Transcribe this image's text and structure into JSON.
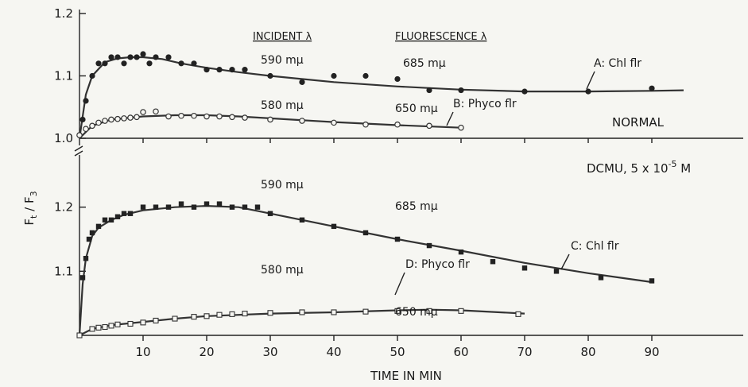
{
  "chart_data": {
    "type": "scatter",
    "xlabel": "TIME IN MIN",
    "ylabel_main": "F",
    "ylabel_sub1": "t",
    "ylabel_slash": " / F",
    "ylabel_sub2": "3",
    "x_ticks": [
      "10",
      "20",
      "30",
      "40",
      "50",
      "60",
      "70",
      "80",
      "90"
    ],
    "x_tick_values": [
      10,
      20,
      30,
      40,
      50,
      60,
      70,
      80,
      90
    ],
    "xlim": [
      0,
      95
    ],
    "top_panel": {
      "ylim": [
        1.0,
        1.2
      ],
      "y_ticks": [
        "1.0",
        "1.1",
        "1.2"
      ],
      "y_tick_values": [
        1.0,
        1.1,
        1.2
      ],
      "condition": "NORMAL"
    },
    "bottom_panel": {
      "ylim": [
        1.0,
        1.3
      ],
      "y_ticks": [
        "1.1",
        "1.2"
      ],
      "y_tick_values": [
        1.1,
        1.2
      ],
      "condition_main": "DCMU, 5 x 10",
      "condition_exp": "-5",
      "condition_unit": " M"
    },
    "headers": {
      "incident": "INCIDENT  λ",
      "fluorescence": "FLUORESCENCE  λ"
    },
    "wavelengths": {
      "a_incident": "590 mμ",
      "a_fluor": "685 mμ",
      "b_incident": "580 mμ",
      "b_fluor": "650 mμ",
      "c_incident": "590 mμ",
      "c_fluor": "685 mμ",
      "d_incident": "580 mμ",
      "d_fluor": "650 mμ"
    },
    "series": [
      {
        "name": "A: Chl flr",
        "panel": "top",
        "marker": "filled-circle",
        "x": [
          0.5,
          1,
          2,
          3,
          4,
          5,
          6,
          7,
          8,
          9,
          10,
          11,
          12,
          14,
          16,
          18,
          20,
          22,
          24,
          26,
          30,
          35,
          40,
          45,
          50,
          55,
          60,
          70,
          80,
          90
        ],
        "y": [
          1.03,
          1.06,
          1.1,
          1.12,
          1.12,
          1.13,
          1.13,
          1.12,
          1.13,
          1.13,
          1.135,
          1.12,
          1.13,
          1.13,
          1.12,
          1.12,
          1.11,
          1.11,
          1.11,
          1.11,
          1.1,
          1.09,
          1.1,
          1.1,
          1.095,
          1.077,
          1.077,
          1.075,
          1.075,
          1.08
        ],
        "fit_x": [
          0,
          1,
          2,
          4,
          6,
          8,
          10,
          13,
          16,
          20,
          25,
          30,
          40,
          50,
          60,
          70,
          80,
          90,
          95
        ],
        "fit_y": [
          1.0,
          1.07,
          1.1,
          1.122,
          1.128,
          1.13,
          1.13,
          1.127,
          1.12,
          1.113,
          1.106,
          1.1,
          1.09,
          1.083,
          1.078,
          1.075,
          1.075,
          1.076,
          1.077
        ]
      },
      {
        "name": "B: Phyco flr",
        "panel": "top",
        "marker": "open-circle",
        "x": [
          0,
          1,
          2,
          3,
          4,
          5,
          6,
          7,
          8,
          9,
          10,
          12,
          14,
          16,
          18,
          20,
          22,
          24,
          26,
          30,
          35,
          40,
          45,
          50,
          55,
          60
        ],
        "y": [
          1.005,
          1.015,
          1.02,
          1.025,
          1.028,
          1.03,
          1.031,
          1.032,
          1.033,
          1.034,
          1.042,
          1.043,
          1.035,
          1.036,
          1.036,
          1.035,
          1.035,
          1.034,
          1.033,
          1.03,
          1.028,
          1.025,
          1.022,
          1.022,
          1.02,
          1.017
        ],
        "fit_x": [
          0,
          2,
          5,
          10,
          15,
          20,
          25,
          30,
          40,
          50,
          60
        ],
        "fit_y": [
          1.0,
          1.02,
          1.03,
          1.035,
          1.037,
          1.037,
          1.035,
          1.032,
          1.026,
          1.021,
          1.017
        ]
      },
      {
        "name": "C: Chl flr",
        "panel": "bottom",
        "marker": "filled-square",
        "x": [
          0,
          0.5,
          1,
          1.5,
          2,
          3,
          4,
          5,
          6,
          7,
          8,
          10,
          12,
          14,
          16,
          18,
          20,
          22,
          24,
          26,
          28,
          30,
          35,
          40,
          45,
          50,
          55,
          60,
          65,
          70,
          75,
          82,
          90
        ],
        "y": [
          1.0,
          1.09,
          1.12,
          1.15,
          1.16,
          1.17,
          1.18,
          1.18,
          1.185,
          1.19,
          1.19,
          1.2,
          1.2,
          1.2,
          1.205,
          1.2,
          1.205,
          1.205,
          1.2,
          1.2,
          1.2,
          1.19,
          1.18,
          1.17,
          1.16,
          1.15,
          1.14,
          1.13,
          1.115,
          1.105,
          1.1,
          1.09,
          1.085
        ],
        "fit_x": [
          0,
          0.5,
          1,
          2,
          3,
          5,
          7,
          10,
          15,
          20,
          25,
          30,
          40,
          50,
          60,
          70,
          80,
          90
        ],
        "fit_y": [
          1.0,
          1.08,
          1.12,
          1.155,
          1.168,
          1.18,
          1.188,
          1.195,
          1.2,
          1.202,
          1.2,
          1.19,
          1.17,
          1.15,
          1.132,
          1.113,
          1.097,
          1.083
        ]
      },
      {
        "name": "D: Phyco flr",
        "panel": "bottom",
        "marker": "open-square",
        "x": [
          0,
          2,
          3,
          4,
          5,
          6,
          8,
          10,
          12,
          15,
          18,
          20,
          22,
          24,
          26,
          30,
          35,
          40,
          45,
          50,
          55,
          60,
          69
        ],
        "y": [
          1.0,
          1.01,
          1.012,
          1.013,
          1.015,
          1.017,
          1.018,
          1.02,
          1.023,
          1.026,
          1.029,
          1.03,
          1.032,
          1.033,
          1.034,
          1.035,
          1.036,
          1.036,
          1.037,
          1.038,
          1.038,
          1.038,
          1.033
        ],
        "fit_x": [
          0,
          2,
          5,
          10,
          15,
          20,
          30,
          40,
          50,
          55,
          60,
          70
        ],
        "fit_y": [
          1.0,
          1.01,
          1.016,
          1.021,
          1.026,
          1.03,
          1.034,
          1.036,
          1.039,
          1.04,
          1.039,
          1.034
        ]
      }
    ]
  }
}
